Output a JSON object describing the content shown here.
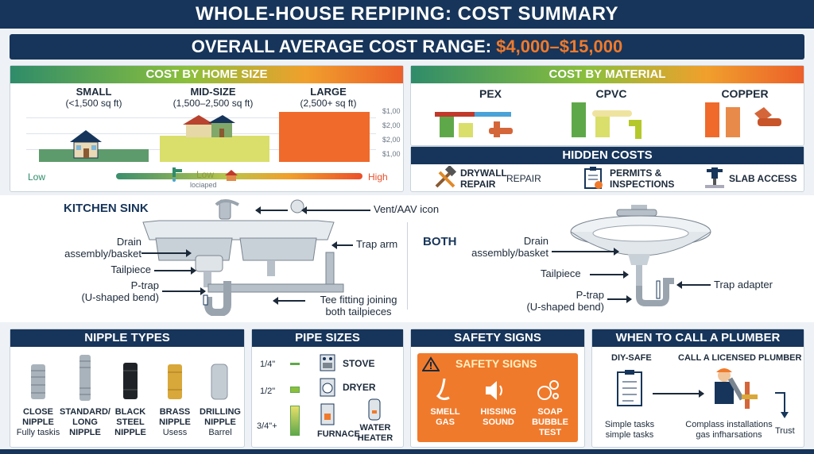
{
  "title": "WHOLE-HOUSE REPIPING: COST SUMMARY",
  "overall": {
    "label": "OVERALL AVERAGE COST RANGE:",
    "amount": "$4,000–$15,000"
  },
  "home_size": {
    "header": "COST BY HOME SIZE",
    "sizes": [
      {
        "name": "SMALL",
        "range": "(<1,500 sq ft)"
      },
      {
        "name": "MID-SIZE",
        "range": "(1,500–2,500 sq ft)"
      },
      {
        "name": "LARGE",
        "range": "(2,500+ sq ft)"
      }
    ],
    "ticks": [
      "$1,00",
      "$2,00",
      "$2,00",
      "$1,00"
    ],
    "scale": {
      "low": "Low",
      "mid": "Low",
      "mid2": "lociaped",
      "high": "High"
    }
  },
  "material": {
    "header": "COST BY MATERIAL",
    "items": [
      "PEX",
      "CPVC",
      "COPPER"
    ]
  },
  "hidden": {
    "header": "HIDDEN COSTS",
    "items": [
      {
        "l1": "DRYWALL",
        "l2": "REPAIR",
        "extra": "REPAIR"
      },
      {
        "l1": "PERMITS &",
        "l2": "INSPECTIONS"
      },
      {
        "l1": "SLAB ACCESS",
        "l2": ""
      }
    ]
  },
  "kitchen": {
    "title": "KITCHEN SINK",
    "vent": "Vent/AAV icon",
    "drain": [
      "Drain",
      "assembly/basket"
    ],
    "trap_arm": "Trap arm",
    "tailpiece": "Tailpiece",
    "ptrap": [
      "P-trap",
      "(U-shaped bend)"
    ],
    "tee": [
      "Tee fitting joining",
      "both tailpieces"
    ]
  },
  "bath": {
    "title": "BOTH",
    "drain": [
      "Drain",
      "assembly/basket"
    ],
    "tailpiece": "Tailpiece",
    "trap_adapter": "Trap adapter",
    "ptrap": [
      "P-trap",
      "(U-shaped bend)"
    ]
  },
  "nipples": {
    "header": "NIPPLE TYPES",
    "items": [
      {
        "l1": "CLOSE",
        "l2": "NIPPLE",
        "sub": "Fully taskis"
      },
      {
        "l1": "STANDARD/",
        "l2": "LONG",
        "l3": "NIPPLE"
      },
      {
        "l1": "BLACK",
        "l2": "STEEL",
        "l3": "NIPPLE"
      },
      {
        "l1": "BRASS",
        "l2": "NIPPLE",
        "sub": "Usess"
      },
      {
        "l1": "DRILLING",
        "l2": "NIPPLE",
        "sub": "Barrel"
      }
    ]
  },
  "pipes": {
    "header": "PIPE SIZES",
    "sizes": [
      "1/4\"",
      "1/2\"",
      "3/4\"+"
    ],
    "apps": [
      "STOVE",
      "DRYER",
      "FURNACE",
      "WATER",
      "HEATER"
    ]
  },
  "safety": {
    "header": "SAFETY SIGNS",
    "inner_title": "SAFETY SIGNS",
    "items": [
      {
        "l1": "SMELL",
        "l2": "GAS"
      },
      {
        "l1": "HISSING",
        "l2": "SOUND"
      },
      {
        "l1": "SOAP",
        "l2": "BUBBLE",
        "l3": "TEST"
      }
    ]
  },
  "plumber": {
    "header": "WHEN TO CALL A PLUMBER",
    "diy": "DIY-SAFE",
    "call": "CALL A LICENSED PLUMBER",
    "diy_sub": [
      "Simple tasks",
      "simple tasks"
    ],
    "call_sub": [
      "Complass installations",
      "gas infharsations"
    ],
    "trust": "Trust"
  },
  "colors": {
    "navy": "#17355a",
    "orange": "#f07a2b",
    "green": "#5fa84a",
    "yellow": "#d9df6a"
  }
}
